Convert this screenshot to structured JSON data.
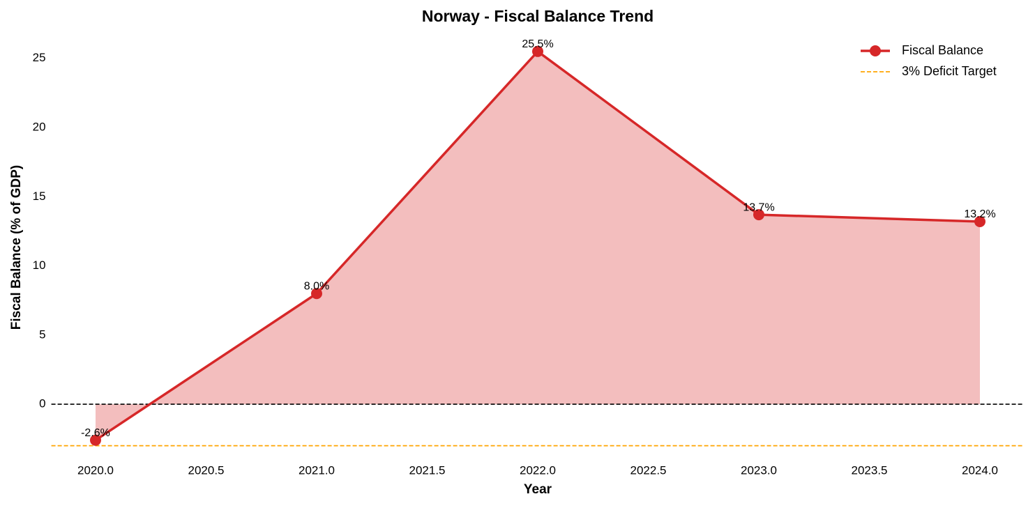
{
  "chart_data": {
    "type": "line",
    "title": "Norway - Fiscal Balance Trend",
    "x_label": "Year",
    "y_label": "Fiscal Balance (% of GDP)",
    "x": [
      2020,
      2021,
      2022,
      2023,
      2024
    ],
    "series": [
      {
        "name": "Fiscal Balance",
        "color": "#d62728",
        "fill_alpha": 0.3,
        "values": [
          -2.6,
          8.0,
          25.5,
          13.7,
          13.2
        ],
        "value_labels": [
          "-2.6%",
          "8.0%",
          "25.5%",
          "13.7%",
          "13.2%"
        ]
      }
    ],
    "hlines": [
      {
        "value": 0,
        "color": "#000000"
      },
      {
        "name": "3% Deficit Target",
        "value": -3,
        "color": "#ffa500"
      }
    ],
    "xlim": [
      2019.8,
      2024.2
    ],
    "ylim": [
      -4.0,
      26.9
    ],
    "xticks": [
      {
        "value": 2020,
        "label": "2020.0"
      },
      {
        "value": 2020.5,
        "label": "2020.5"
      },
      {
        "value": 2021,
        "label": "2021.0"
      },
      {
        "value": 2021.5,
        "label": "2021.5"
      },
      {
        "value": 2022,
        "label": "2022.0"
      },
      {
        "value": 2022.5,
        "label": "2022.5"
      },
      {
        "value": 2023,
        "label": "2023.0"
      },
      {
        "value": 2023.5,
        "label": "2023.5"
      },
      {
        "value": 2024,
        "label": "2024.0"
      }
    ],
    "yticks": [
      0,
      5,
      10,
      15,
      20,
      25
    ],
    "grid": false,
    "legend": "upper right"
  }
}
